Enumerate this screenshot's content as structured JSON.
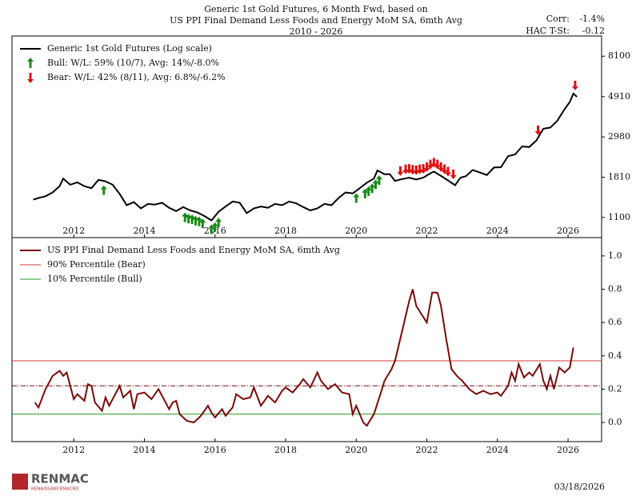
{
  "header": {
    "title_lines": [
      "Generic 1st Gold Futures, 6 Month Fwd, based on",
      "US PPI Final Demand Less Foods and Energy MoM SA, 6mth Avg",
      "2010 - 2026"
    ],
    "corr_label": "Corr:",
    "corr_value": "-1.4%",
    "hac_label": "HAC T-St:",
    "hac_value": "-0.12"
  },
  "footer": {
    "logo": "RENMAC",
    "logo_sub": "RENAISSANCEMACRO",
    "date": "03/18/2026"
  },
  "chart_data": [
    {
      "type": "line",
      "log_scale": true,
      "legend": "upper left",
      "x": [
        2010.85,
        2011.0,
        2011.2,
        2011.4,
        2011.6,
        2011.7,
        2011.9,
        2012.1,
        2012.3,
        2012.5,
        2012.7,
        2012.9,
        2013.1,
        2013.3,
        2013.5,
        2013.7,
        2013.9,
        2014.1,
        2014.3,
        2014.5,
        2014.7,
        2014.9,
        2015.1,
        2015.3,
        2015.5,
        2015.7,
        2015.9,
        2016.1,
        2016.3,
        2016.5,
        2016.7,
        2016.9,
        2017.1,
        2017.3,
        2017.5,
        2017.7,
        2017.9,
        2018.1,
        2018.3,
        2018.5,
        2018.7,
        2018.9,
        2019.1,
        2019.3,
        2019.5,
        2019.7,
        2019.9,
        2020.1,
        2020.3,
        2020.5,
        2020.6,
        2020.8,
        2020.95,
        2021.1,
        2021.3,
        2021.5,
        2021.7,
        2021.9,
        2022.1,
        2022.2,
        2022.4,
        2022.6,
        2022.8,
        2022.95,
        2023.1,
        2023.3,
        2023.5,
        2023.7,
        2023.9,
        2024.1,
        2024.3,
        2024.5,
        2024.7,
        2024.9,
        2025.1,
        2025.3,
        2025.5,
        2025.7,
        2025.9,
        2026.05,
        2026.15,
        2026.25
      ],
      "series": [
        {
          "name": "Generic 1st Gold Futures (Log scale)",
          "color": "#000000",
          "values": [
            1370,
            1400,
            1430,
            1500,
            1620,
            1780,
            1650,
            1700,
            1620,
            1580,
            1750,
            1720,
            1650,
            1470,
            1280,
            1330,
            1230,
            1300,
            1290,
            1320,
            1240,
            1190,
            1250,
            1200,
            1170,
            1120,
            1060,
            1180,
            1260,
            1340,
            1320,
            1160,
            1230,
            1260,
            1240,
            1300,
            1280,
            1340,
            1310,
            1250,
            1200,
            1230,
            1300,
            1280,
            1400,
            1500,
            1480,
            1580,
            1690,
            1780,
            1970,
            1880,
            1880,
            1730,
            1770,
            1800,
            1760,
            1800,
            1900,
            1940,
            1840,
            1740,
            1640,
            1800,
            1830,
            1980,
            1920,
            1860,
            2040,
            2050,
            2350,
            2400,
            2650,
            2630,
            2850,
            3300,
            3350,
            3650,
            4200,
            4600,
            5100,
            4900
          ]
        }
      ],
      "signals": [
        {
          "name": "Bull:  W/L: 59% (10/7), Avg: 14%/-8.0%",
          "color": "#1a8a1a",
          "direction": "up",
          "x": [
            2012.85,
            2015.15,
            2015.25,
            2015.35,
            2015.45,
            2015.55,
            2015.65,
            2015.9,
            2016.0,
            2016.1,
            2020.0,
            2020.25,
            2020.35,
            2020.45,
            2020.55,
            2020.65
          ],
          "values": [
            1720,
            1230,
            1210,
            1200,
            1180,
            1170,
            1140,
            1060,
            1090,
            1150,
            1560,
            1650,
            1700,
            1760,
            1850,
            1950
          ]
        },
        {
          "name": "Bear:  W/L: 42% (8/11), Avg: 6.8%/-6.2%",
          "color": "#e01010",
          "direction": "down",
          "x": [
            2021.25,
            2021.4,
            2021.5,
            2021.6,
            2021.7,
            2021.8,
            2021.9,
            2022.0,
            2022.1,
            2022.2,
            2022.3,
            2022.4,
            2022.5,
            2022.6,
            2022.75,
            2025.15,
            2026.2
          ],
          "values": [
            1750,
            1790,
            1800,
            1780,
            1770,
            1790,
            1800,
            1840,
            1900,
            1940,
            1900,
            1840,
            1790,
            1740,
            1680,
            2900,
            5050
          ]
        }
      ],
      "xlim": [
        2010.25,
        2026.95
      ],
      "xticks": [
        2012,
        2014,
        2016,
        2018,
        2020,
        2022,
        2024,
        2026
      ],
      "ylim": [
        857,
        10400
      ],
      "yticks": [
        1100,
        1810,
        2980,
        4910,
        8100
      ]
    },
    {
      "type": "line",
      "legend": "upper left",
      "x": [
        2010.9,
        2011.0,
        2011.2,
        2011.4,
        2011.6,
        2011.7,
        2011.8,
        2011.9,
        2012.0,
        2012.1,
        2012.3,
        2012.4,
        2012.5,
        2012.6,
        2012.8,
        2012.9,
        2013.0,
        2013.2,
        2013.3,
        2013.4,
        2013.6,
        2013.7,
        2013.8,
        2014.0,
        2014.2,
        2014.4,
        2014.5,
        2014.7,
        2014.8,
        2014.9,
        2015.0,
        2015.2,
        2015.4,
        2015.6,
        2015.8,
        2015.9,
        2016.0,
        2016.2,
        2016.3,
        2016.5,
        2016.6,
        2016.8,
        2017.0,
        2017.1,
        2017.3,
        2017.5,
        2017.7,
        2017.9,
        2018.0,
        2018.2,
        2018.4,
        2018.5,
        2018.7,
        2018.9,
        2019.0,
        2019.2,
        2019.4,
        2019.6,
        2019.8,
        2019.9,
        2020.0,
        2020.2,
        2020.3,
        2020.5,
        2020.7,
        2020.8,
        2021.0,
        2021.1,
        2021.3,
        2021.5,
        2021.6,
        2021.7,
        2021.85,
        2022.0,
        2022.15,
        2022.3,
        2022.4,
        2022.55,
        2022.7,
        2022.85,
        2023.0,
        2023.2,
        2023.4,
        2023.6,
        2023.8,
        2024.0,
        2024.1,
        2024.3,
        2024.4,
        2024.5,
        2024.6,
        2024.75,
        2024.9,
        2025.0,
        2025.2,
        2025.3,
        2025.4,
        2025.5,
        2025.6,
        2025.75,
        2025.9,
        2026.05,
        2026.15
      ],
      "series": [
        {
          "name": "US PPI Final Demand Less Foods and Energy MoM SA, 6mth Avg",
          "color": "#7a0a0a",
          "values": [
            0.12,
            0.09,
            0.2,
            0.28,
            0.31,
            0.28,
            0.3,
            0.22,
            0.14,
            0.17,
            0.13,
            0.23,
            0.22,
            0.12,
            0.07,
            0.15,
            0.1,
            0.18,
            0.22,
            0.15,
            0.19,
            0.08,
            0.17,
            0.18,
            0.14,
            0.2,
            0.16,
            0.08,
            0.12,
            0.13,
            0.05,
            0.01,
            0.0,
            0.04,
            0.1,
            0.06,
            0.03,
            0.08,
            0.04,
            0.09,
            0.17,
            0.14,
            0.15,
            0.21,
            0.1,
            0.16,
            0.12,
            0.19,
            0.21,
            0.18,
            0.23,
            0.26,
            0.21,
            0.3,
            0.25,
            0.2,
            0.23,
            0.18,
            0.17,
            0.05,
            0.1,
            0.0,
            -0.02,
            0.05,
            0.18,
            0.25,
            0.32,
            0.37,
            0.55,
            0.73,
            0.8,
            0.7,
            0.65,
            0.6,
            0.78,
            0.78,
            0.7,
            0.5,
            0.32,
            0.28,
            0.25,
            0.2,
            0.17,
            0.19,
            0.17,
            0.18,
            0.16,
            0.22,
            0.3,
            0.25,
            0.35,
            0.27,
            0.3,
            0.28,
            0.35,
            0.25,
            0.2,
            0.28,
            0.2,
            0.33,
            0.3,
            0.33,
            0.45
          ]
        }
      ],
      "reference_lines": [
        {
          "name": "90% Percentile (Bear)",
          "color": "#d03a3a",
          "value": 0.37,
          "style": "solid"
        },
        {
          "name": "10% Percentile (Bull)",
          "color": "#2a9a2a",
          "value": 0.05,
          "style": "solid"
        },
        {
          "color": "#7a0a0a",
          "value": 0.22,
          "style": "dashdot"
        }
      ],
      "xlim": [
        2010.25,
        2026.95
      ],
      "xticks": [
        2012,
        2014,
        2016,
        2018,
        2020,
        2022,
        2024,
        2026
      ],
      "ylim": [
        -0.115,
        1.11
      ],
      "yticks": [
        {
          "value": 0,
          "label": "0.0"
        },
        0.2,
        0.4,
        0.6,
        0.8,
        {
          "value": 1,
          "label": "1.0"
        }
      ]
    }
  ]
}
